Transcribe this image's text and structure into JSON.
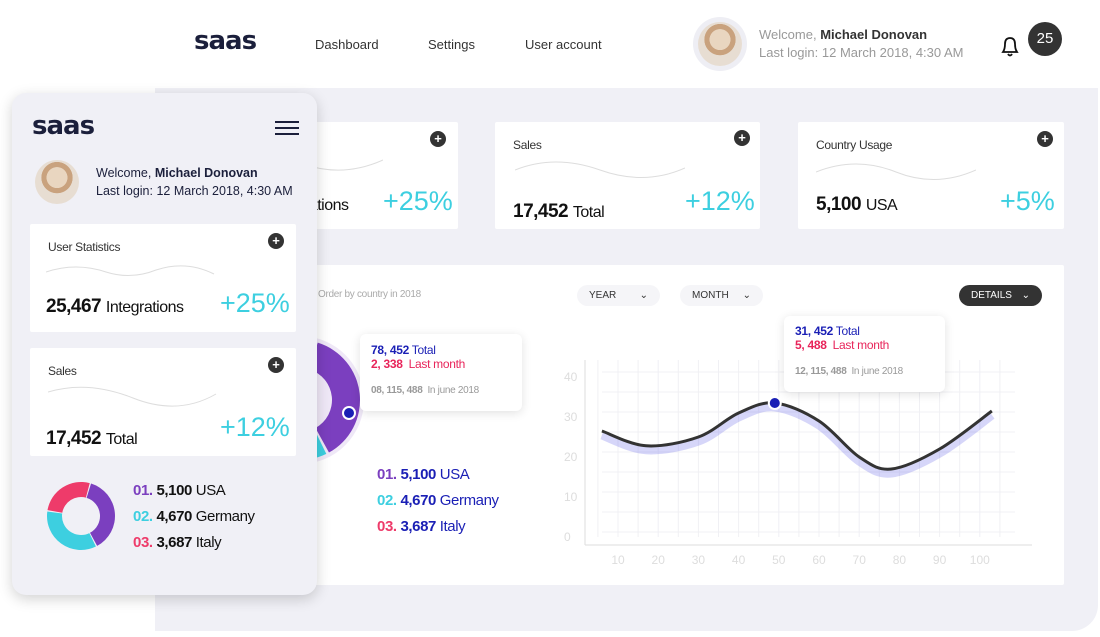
{
  "header": {
    "logo": "saas",
    "nav": [
      "Dashboard",
      "Settings",
      "User account"
    ],
    "welcome": "Welcome,",
    "user_name": "Michael Donovan",
    "last_login": "Last login: 12 March 2018, 4:30 AM",
    "notification_count": "25"
  },
  "cards": [
    {
      "title": "User Statistics",
      "value": "25,467",
      "unit": "Integrations",
      "change": "+25%"
    },
    {
      "title": "Sales",
      "value": "17,452",
      "unit": "Total",
      "change": "+12%"
    },
    {
      "title": "Country Usage",
      "value": "5,100",
      "unit": "USA",
      "change": "+5%"
    }
  ],
  "order_panel": {
    "subtitle": "Order by country in 2018",
    "tooltip": {
      "total": "78, 452",
      "total_label": "Total",
      "last": "2, 338",
      "last_label": "Last month",
      "june": "08, 115, 488",
      "june_label": "In june 2018"
    }
  },
  "countries": [
    {
      "rank": "01.",
      "value": "5,100",
      "name": "USA",
      "color": "#7b3fbf",
      "share": 0.38
    },
    {
      "rank": "02.",
      "value": "4,670",
      "name": "Germany",
      "color": "#3dcfe0",
      "share": 0.35
    },
    {
      "rank": "03.",
      "value": "3,687",
      "name": "Italy",
      "color": "#ee3b6a",
      "share": 0.27
    }
  ],
  "filters": {
    "year": "YEAR",
    "month": "MONTH",
    "details": "DETAILS"
  },
  "chart_tooltip": {
    "total": "31, 452",
    "total_label": "Total",
    "last": "5, 488",
    "last_label": "Last month",
    "june": "12, 115, 488",
    "june_label": "In june 2018"
  },
  "chart_data": {
    "type": "line",
    "x": [
      6,
      17,
      30,
      40,
      49,
      60,
      70,
      78,
      90,
      103
    ],
    "y": [
      26.5,
      22.8,
      25,
      31,
      33.5,
      29,
      20,
      17,
      22,
      31.5
    ],
    "highlight": {
      "x": 49,
      "y": 33.5
    },
    "xticks": [
      "10",
      "20",
      "30",
      "40",
      "50",
      "60",
      "70",
      "80",
      "90",
      "100"
    ],
    "yticks": [
      "0",
      "10",
      "20",
      "30",
      "40"
    ],
    "xlim": [
      2,
      110
    ],
    "ylim": [
      0,
      40
    ],
    "grid": true
  },
  "colors": {
    "accent": "#3dcfe0",
    "blue": "#1a1fb5",
    "red": "#e8245a",
    "purple": "#7b3fbf"
  }
}
